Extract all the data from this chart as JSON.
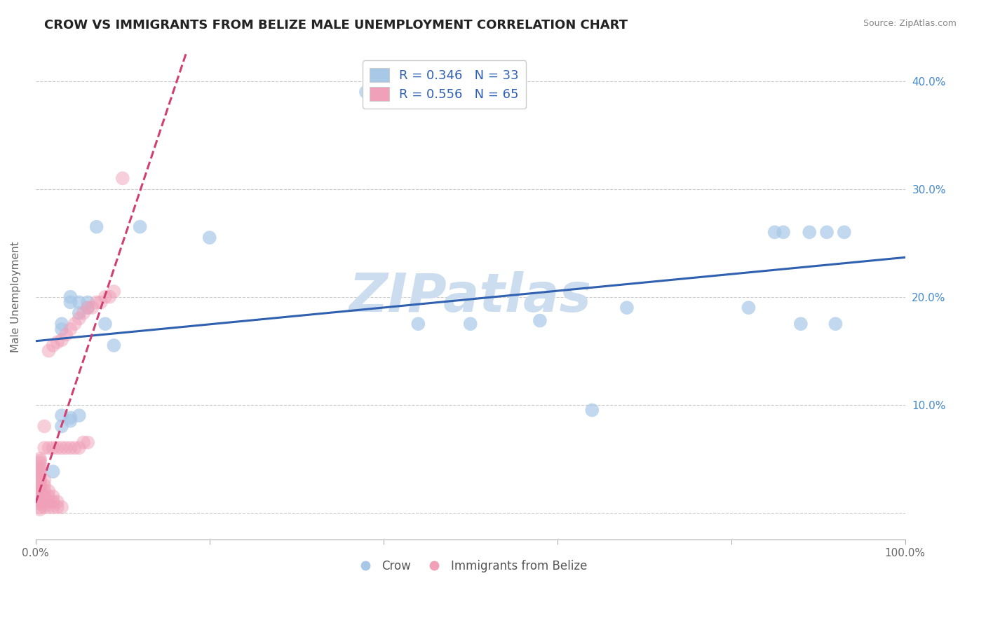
{
  "title": "CROW VS IMMIGRANTS FROM BELIZE MALE UNEMPLOYMENT CORRELATION CHART",
  "source": "Source: ZipAtlas.com",
  "ylabel": "Male Unemployment",
  "xlim": [
    0.0,
    1.0
  ],
  "ylim": [
    -0.025,
    0.425
  ],
  "x_ticks": [
    0.0,
    0.2,
    0.4,
    0.6,
    0.8,
    1.0
  ],
  "x_tick_labels": [
    "0.0%",
    "",
    "",
    "",
    "",
    "100.0%"
  ],
  "y_ticks": [
    0.0,
    0.1,
    0.2,
    0.3,
    0.4
  ],
  "y_tick_labels": [
    "",
    "10.0%",
    "20.0%",
    "30.0%",
    "40.0%"
  ],
  "crow_R": 0.346,
  "crow_N": 33,
  "belize_R": 0.556,
  "belize_N": 65,
  "crow_color": "#a8c8e8",
  "belize_color": "#f0a0b8",
  "trendline_crow_color": "#3060b0",
  "trendline_belize_color": "#d04070",
  "watermark": "ZIPatlas",
  "watermark_color": "#ccddf0",
  "crow_x": [
    0.02,
    0.03,
    0.03,
    0.03,
    0.03,
    0.04,
    0.04,
    0.04,
    0.04,
    0.05,
    0.05,
    0.05,
    0.06,
    0.06,
    0.07,
    0.08,
    0.09,
    0.12,
    0.2,
    0.38,
    0.44,
    0.58,
    0.64,
    0.68,
    0.82,
    0.85,
    0.86,
    0.88,
    0.89,
    0.91,
    0.92,
    0.93,
    0.5
  ],
  "crow_y": [
    0.038,
    0.17,
    0.175,
    0.08,
    0.09,
    0.195,
    0.2,
    0.085,
    0.088,
    0.195,
    0.185,
    0.09,
    0.195,
    0.19,
    0.265,
    0.175,
    0.155,
    0.265,
    0.255,
    0.39,
    0.175,
    0.178,
    0.095,
    0.19,
    0.19,
    0.26,
    0.26,
    0.175,
    0.26,
    0.26,
    0.175,
    0.26,
    0.175
  ],
  "belize_x": [
    0.005,
    0.005,
    0.005,
    0.005,
    0.005,
    0.005,
    0.005,
    0.005,
    0.005,
    0.005,
    0.005,
    0.005,
    0.005,
    0.005,
    0.005,
    0.005,
    0.005,
    0.005,
    0.005,
    0.005,
    0.01,
    0.01,
    0.01,
    0.01,
    0.01,
    0.01,
    0.01,
    0.01,
    0.015,
    0.015,
    0.015,
    0.015,
    0.015,
    0.015,
    0.02,
    0.02,
    0.02,
    0.02,
    0.02,
    0.025,
    0.025,
    0.025,
    0.025,
    0.03,
    0.03,
    0.03,
    0.035,
    0.035,
    0.04,
    0.04,
    0.045,
    0.045,
    0.05,
    0.05,
    0.055,
    0.055,
    0.06,
    0.06,
    0.065,
    0.07,
    0.075,
    0.08,
    0.085,
    0.09,
    0.1
  ],
  "belize_y": [
    0.003,
    0.005,
    0.008,
    0.01,
    0.012,
    0.015,
    0.018,
    0.02,
    0.022,
    0.025,
    0.028,
    0.03,
    0.033,
    0.036,
    0.038,
    0.04,
    0.043,
    0.046,
    0.048,
    0.05,
    0.005,
    0.01,
    0.015,
    0.02,
    0.025,
    0.03,
    0.06,
    0.08,
    0.005,
    0.01,
    0.015,
    0.02,
    0.06,
    0.15,
    0.005,
    0.01,
    0.015,
    0.06,
    0.155,
    0.005,
    0.01,
    0.06,
    0.158,
    0.005,
    0.06,
    0.16,
    0.06,
    0.165,
    0.06,
    0.17,
    0.06,
    0.175,
    0.06,
    0.18,
    0.065,
    0.185,
    0.065,
    0.19,
    0.19,
    0.195,
    0.195,
    0.2,
    0.2,
    0.205,
    0.31
  ]
}
